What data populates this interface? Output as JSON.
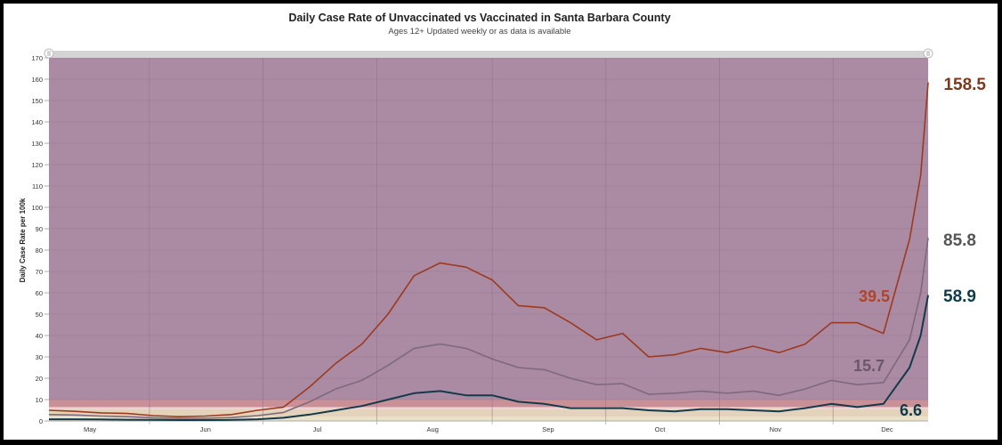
{
  "chart_data": {
    "type": "line",
    "title": "Daily Case Rate of Unvaccinated vs Vaccinated in Santa Barbara County",
    "subtitle": "Ages 12+ Updated weekly or as data is available",
    "ylabel": "Daily Case Rate per 100k",
    "xlabel": "",
    "ylim": [
      0,
      170
    ],
    "yticks": [
      0,
      10,
      20,
      30,
      40,
      50,
      60,
      70,
      80,
      90,
      100,
      110,
      120,
      130,
      140,
      150,
      160,
      170
    ],
    "xlim": [
      "2021-04-20",
      "2021-12-12"
    ],
    "xticks": [
      {
        "date": "2021-05-01",
        "label": "May"
      },
      {
        "date": "2021-06-01",
        "label": "Jun"
      },
      {
        "date": "2021-07-01",
        "label": "Jul"
      },
      {
        "date": "2021-08-01",
        "label": "Aug"
      },
      {
        "date": "2021-09-01",
        "label": "Sep"
      },
      {
        "date": "2021-10-01",
        "label": "Oct"
      },
      {
        "date": "2021-11-01",
        "label": "Nov"
      },
      {
        "date": "2021-12-01",
        "label": "Dec"
      }
    ],
    "grid": true,
    "background_bands": [
      {
        "from": 0,
        "to": 2,
        "color": "#ebe2c6"
      },
      {
        "from": 2,
        "to": 5.5,
        "color": "#e4d2bb"
      },
      {
        "from": 5.5,
        "to": 6.5,
        "color": "#ecd0cf"
      },
      {
        "from": 6.5,
        "to": 10,
        "color": "#c99097"
      },
      {
        "from": 10,
        "to": 170,
        "color": "#ab8ba3"
      }
    ],
    "dates": [
      "2021-04-20",
      "2021-04-27",
      "2021-05-04",
      "2021-05-11",
      "2021-05-18",
      "2021-05-25",
      "2021-06-01",
      "2021-06-08",
      "2021-06-15",
      "2021-06-22",
      "2021-06-29",
      "2021-07-06",
      "2021-07-13",
      "2021-07-20",
      "2021-07-27",
      "2021-08-03",
      "2021-08-10",
      "2021-08-17",
      "2021-08-24",
      "2021-08-31",
      "2021-09-07",
      "2021-09-14",
      "2021-09-21",
      "2021-09-28",
      "2021-10-05",
      "2021-10-12",
      "2021-10-19",
      "2021-10-26",
      "2021-11-02",
      "2021-11-09",
      "2021-11-16",
      "2021-11-23",
      "2021-11-30",
      "2021-12-07",
      "2021-12-10",
      "2021-12-12"
    ],
    "series": [
      {
        "color": "#9b3a20",
        "values": [
          5,
          4.5,
          3.8,
          3.5,
          2.5,
          2,
          2.3,
          3,
          5,
          6.5,
          16,
          27,
          36,
          50,
          68,
          74,
          72,
          66,
          54,
          53,
          46,
          38,
          41,
          30,
          31,
          34,
          32,
          35,
          32,
          36,
          46,
          46,
          41,
          85,
          115,
          158.5
        ]
      },
      {
        "color": "#7d6a7c",
        "values": [
          3,
          2.8,
          2.3,
          2,
          1.5,
          1.2,
          1.3,
          1.6,
          2.5,
          4,
          9,
          15,
          19,
          26,
          34,
          36,
          34,
          29,
          25,
          24,
          20,
          17,
          17.5,
          12.5,
          13,
          14,
          13,
          14,
          12,
          15,
          19,
          17,
          18,
          38,
          60,
          85.8
        ]
      },
      {
        "color": "#123a4a",
        "values": [
          0.8,
          0.8,
          0.7,
          0.6,
          0.5,
          0.4,
          0.4,
          0.5,
          0.8,
          1.5,
          3,
          5,
          7,
          10,
          13,
          14,
          12,
          12,
          9,
          8,
          6,
          6,
          6,
          5,
          4.5,
          5.5,
          5.5,
          5,
          4.5,
          6,
          8,
          6.5,
          8,
          25,
          40,
          58.9
        ]
      }
    ],
    "annotations": [
      {
        "text": "158.5",
        "color": "#7a3a1f"
      },
      {
        "text": "85.8",
        "color": "#555555"
      },
      {
        "text": "58.9",
        "color": "#0d3b4a"
      },
      {
        "text": "39.5",
        "color": "#b0442a"
      },
      {
        "text": "15.7",
        "color": "#6a5868"
      },
      {
        "text": "6.6",
        "color": "#0d3b4a"
      }
    ]
  }
}
